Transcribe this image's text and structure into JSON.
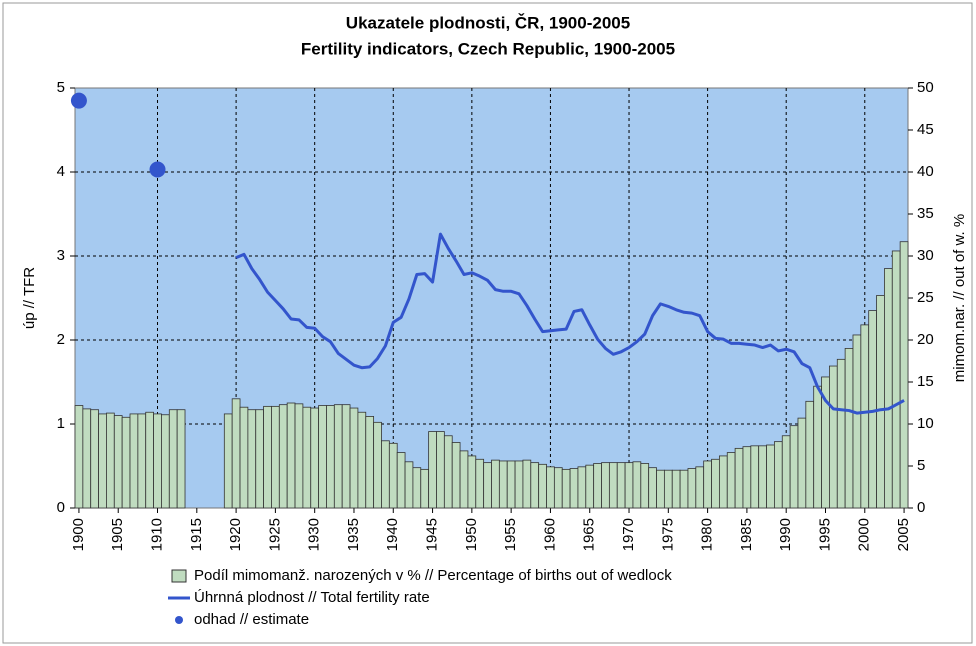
{
  "chart_data": {
    "type": "bar",
    "title": "Ukazatele plodnosti, ČR, 1900-2005",
    "subtitle": "Fertility indicators, Czech Republic, 1900-2005",
    "y_label": "úp // TFR",
    "y2_label": "mimom.nar. // out of w. %",
    "categories": [
      "1900",
      null,
      null,
      null,
      null,
      "1905",
      null,
      null,
      null,
      null,
      "1910",
      null,
      null,
      null,
      null,
      "1915",
      null,
      null,
      null,
      null,
      "1920",
      null,
      null,
      null,
      null,
      "1925",
      null,
      null,
      null,
      null,
      "1930",
      null,
      null,
      null,
      null,
      "1935",
      null,
      null,
      null,
      null,
      "1940",
      null,
      null,
      null,
      null,
      "1945",
      null,
      null,
      null,
      null,
      "1950",
      null,
      null,
      null,
      null,
      "1955",
      null,
      null,
      null,
      null,
      "1960",
      null,
      null,
      null,
      null,
      "1965",
      null,
      null,
      null,
      null,
      "1970",
      null,
      null,
      null,
      null,
      "1975",
      null,
      null,
      null,
      null,
      "1980",
      null,
      null,
      null,
      null,
      "1985",
      null,
      null,
      null,
      null,
      "1990",
      null,
      null,
      null,
      null,
      "1995",
      null,
      null,
      null,
      null,
      "2000",
      null,
      null,
      null,
      null,
      "2005"
    ],
    "series": [
      {
        "name": "Podíl mimomanž. narozených v % // Percentage of births out of wedlock",
        "type": "bar",
        "axis": "y2",
        "color": "#c0dcc0",
        "values": [
          12.2,
          11.8,
          11.7,
          11.2,
          11.3,
          11.0,
          10.8,
          11.2,
          11.2,
          11.4,
          11.2,
          11.1,
          11.7,
          11.7,
          null,
          null,
          null,
          null,
          null,
          11.2,
          13.0,
          12.0,
          11.7,
          11.7,
          12.1,
          12.1,
          12.3,
          12.5,
          12.4,
          12.0,
          11.9,
          12.2,
          12.2,
          12.3,
          12.3,
          11.9,
          11.4,
          10.9,
          10.2,
          8.0,
          7.7,
          6.6,
          5.5,
          4.8,
          4.6,
          9.1,
          9.1,
          8.6,
          7.8,
          6.8,
          6.2,
          5.8,
          5.4,
          5.7,
          5.6,
          5.6,
          5.6,
          5.7,
          5.4,
          5.2,
          4.9,
          4.8,
          4.6,
          4.7,
          4.9,
          5.1,
          5.3,
          5.4,
          5.4,
          5.4,
          5.4,
          5.5,
          5.3,
          4.8,
          4.5,
          4.5,
          4.5,
          4.5,
          4.7,
          4.9,
          5.6,
          5.8,
          6.2,
          6.6,
          7.1,
          7.3,
          7.4,
          7.4,
          7.5,
          7.9,
          8.6,
          9.8,
          10.7,
          12.7,
          14.5,
          15.6,
          16.9,
          17.7,
          19.0,
          20.6,
          21.8,
          23.5,
          25.3,
          28.5,
          30.6,
          31.7
        ]
      },
      {
        "name": "Úhrnná plodnost // Total fertility rate",
        "type": "line",
        "axis": "y",
        "color": "#3355cc",
        "values": [
          null,
          null,
          null,
          null,
          null,
          null,
          null,
          null,
          null,
          null,
          null,
          null,
          null,
          null,
          null,
          null,
          null,
          null,
          null,
          null,
          2.98,
          3.02,
          2.85,
          2.72,
          2.57,
          2.47,
          2.37,
          2.25,
          2.24,
          2.15,
          2.14,
          2.04,
          1.98,
          1.84,
          1.77,
          1.7,
          1.67,
          1.68,
          1.78,
          1.93,
          2.21,
          2.27,
          2.49,
          2.78,
          2.79,
          2.69,
          3.26,
          3.09,
          2.94,
          2.78,
          2.8,
          2.76,
          2.71,
          2.6,
          2.58,
          2.58,
          2.55,
          2.41,
          2.25,
          2.1,
          2.11,
          2.12,
          2.13,
          2.34,
          2.36,
          2.18,
          2.01,
          1.9,
          1.83,
          1.86,
          1.91,
          1.98,
          2.07,
          2.29,
          2.43,
          2.4,
          2.36,
          2.33,
          2.32,
          2.29,
          2.1,
          2.02,
          2.01,
          1.96,
          1.96,
          1.95,
          1.94,
          1.91,
          1.94,
          1.87,
          1.89,
          1.86,
          1.72,
          1.67,
          1.44,
          1.28,
          1.18,
          1.17,
          1.16,
          1.13,
          1.14,
          1.15,
          1.17,
          1.18,
          1.23,
          1.28
        ]
      },
      {
        "name": "odhad // estimate",
        "type": "scatter",
        "axis": "y",
        "color": "#3355cc",
        "values": [
          4.85,
          null,
          null,
          null,
          null,
          null,
          null,
          null,
          null,
          null,
          4.03,
          null,
          null,
          null,
          null,
          null,
          null,
          null,
          null,
          null,
          null,
          null,
          null,
          null,
          null,
          null,
          null,
          null,
          null,
          null,
          null,
          null,
          null,
          null,
          null,
          null,
          null,
          null,
          null,
          null,
          null,
          null,
          null,
          null,
          null,
          null,
          null,
          null,
          null,
          null,
          null,
          null,
          null,
          null,
          null,
          null,
          null,
          null,
          null,
          null,
          null,
          null,
          null,
          null,
          null,
          null,
          null,
          null,
          null,
          null,
          null,
          null,
          null,
          null,
          null,
          null,
          null,
          null,
          null,
          null,
          null,
          null,
          null,
          null,
          null,
          null,
          null,
          null,
          null,
          null,
          null,
          null,
          null,
          null,
          null,
          null,
          null,
          null,
          null,
          null,
          null,
          null,
          null,
          null,
          null,
          null
        ]
      }
    ],
    "ylim": [
      0,
      5
    ],
    "yticks": [
      0,
      1,
      2,
      3,
      4,
      5
    ],
    "y2lim": [
      0,
      50
    ],
    "y2ticks": [
      0,
      5,
      10,
      15,
      20,
      25,
      30,
      35,
      40,
      45,
      50
    ],
    "grid": true,
    "plot_background": "#a6caf0"
  }
}
